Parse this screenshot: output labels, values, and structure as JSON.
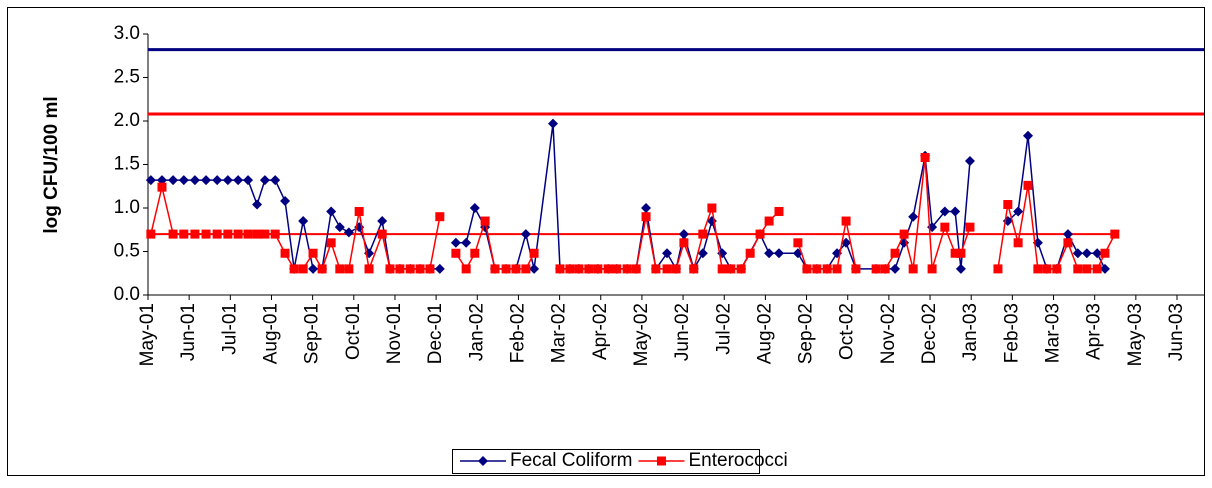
{
  "chart_data": {
    "type": "line",
    "ylabel": "log CFU/100 ml",
    "xlim": [
      0,
      25
    ],
    "ylim": [
      0,
      3
    ],
    "yticks": [
      {
        "value": 0,
        "label": "0.0"
      },
      {
        "value": 0.5,
        "label": "0.5"
      },
      {
        "value": 1,
        "label": "1.0"
      },
      {
        "value": 1.5,
        "label": "1.5"
      },
      {
        "value": 2,
        "label": "2.0"
      },
      {
        "value": 2.5,
        "label": "2.5"
      },
      {
        "value": 3,
        "label": "3.0"
      }
    ],
    "xticks": [
      {
        "value": 0,
        "label": "May-01"
      },
      {
        "value": 1,
        "label": "Jun-01"
      },
      {
        "value": 2,
        "label": "Jul-01"
      },
      {
        "value": 3,
        "label": "Aug-01"
      },
      {
        "value": 4,
        "label": "Sep-01"
      },
      {
        "value": 5,
        "label": "Oct-01"
      },
      {
        "value": 6,
        "label": "Nov-01"
      },
      {
        "value": 7,
        "label": "Dec-01"
      },
      {
        "value": 8,
        "label": "Jan-02"
      },
      {
        "value": 9,
        "label": "Feb-02"
      },
      {
        "value": 10,
        "label": "Mar-02"
      },
      {
        "value": 11,
        "label": "Apr-02"
      },
      {
        "value": 12,
        "label": "May-02"
      },
      {
        "value": 13,
        "label": "Jun-02"
      },
      {
        "value": 14,
        "label": "Jul-02"
      },
      {
        "value": 15,
        "label": "Aug-02"
      },
      {
        "value": 16,
        "label": "Sep-02"
      },
      {
        "value": 17,
        "label": "Oct-02"
      },
      {
        "value": 18,
        "label": "Nov-02"
      },
      {
        "value": 19,
        "label": "Dec-02"
      },
      {
        "value": 20,
        "label": "Jan-03"
      },
      {
        "value": 21,
        "label": "Feb-03"
      },
      {
        "value": 22,
        "label": "Mar-03"
      },
      {
        "value": 23,
        "label": "Apr-03"
      },
      {
        "value": 24,
        "label": "May-03"
      },
      {
        "value": 25,
        "label": "Jun-03"
      }
    ],
    "reference_lines": [
      {
        "value": 2.82,
        "color": "#000080"
      },
      {
        "value": 2.08,
        "color": "#ff0000"
      },
      {
        "value": 0.7,
        "color": "#ff0000",
        "x_end": 23.49
      }
    ],
    "series": [
      {
        "name": "Fecal Coliform",
        "color": "#000080",
        "marker": "diamond",
        "x": [
          0.07,
          0.34,
          0.61,
          0.87,
          1.14,
          1.41,
          1.68,
          1.94,
          2.19,
          2.43,
          2.65,
          2.84,
          3.09,
          3.33,
          3.55,
          3.77,
          4.01,
          4.23,
          4.45,
          4.66,
          4.88,
          5.13,
          5.37,
          5.69,
          5.88,
          6.12,
          6.37,
          6.61,
          6.85,
          7.09,
          7.3,
          7.48,
          7.73,
          7.94,
          8.19,
          8.43,
          8.7,
          8.94,
          9.18,
          9.38,
          9.84,
          10.01,
          10.25,
          10.47,
          10.71,
          10.93,
          11.18,
          11.39,
          11.64,
          11.86,
          12.1,
          12.34,
          12.61,
          12.83,
          13.02,
          13.26,
          13.48,
          13.7,
          13.95,
          14.16,
          14.41,
          14.87,
          15.09,
          15.33,
          15.79,
          16.01,
          16.25,
          16.5,
          16.74,
          16.96,
          17.2,
          17.69,
          17.91,
          18.15,
          18.37,
          18.59,
          18.88,
          19.05,
          19.36,
          19.61,
          19.75,
          19.97,
          20.3,
          20.89,
          21.14,
          21.38,
          21.62,
          21.84,
          22.08,
          22.35,
          22.59,
          22.81,
          23.06,
          23.25
        ],
        "values": [
          1.32,
          1.32,
          1.32,
          1.32,
          1.32,
          1.32,
          1.32,
          1.32,
          1.32,
          1.32,
          1.04,
          1.32,
          1.32,
          1.08,
          0.3,
          0.85,
          0.3,
          0.3,
          0.96,
          0.78,
          0.72,
          0.78,
          0.48,
          0.85,
          0.3,
          0.3,
          0.3,
          0.3,
          0.3,
          0.3,
          null,
          0.6,
          0.6,
          1.0,
          0.78,
          0.3,
          0.3,
          0.3,
          0.7,
          0.3,
          1.97,
          0.3,
          0.3,
          0.3,
          0.3,
          0.3,
          0.3,
          0.3,
          0.3,
          0.3,
          1.0,
          0.3,
          0.48,
          0.3,
          0.7,
          0.3,
          0.48,
          0.85,
          0.48,
          0.3,
          0.3,
          0.7,
          0.48,
          0.48,
          0.48,
          0.3,
          0.3,
          0.3,
          0.48,
          0.6,
          0.3,
          0.3,
          0.3,
          0.3,
          0.6,
          0.9,
          1.6,
          0.78,
          0.96,
          0.96,
          0.3,
          1.54,
          null,
          0.85,
          0.96,
          1.83,
          0.6,
          0.3,
          0.3,
          0.7,
          0.48,
          0.48,
          0.48,
          0.3
        ]
      },
      {
        "name": "Enterococci",
        "color": "#ff0000",
        "marker": "square",
        "x": [
          0.07,
          0.34,
          0.61,
          0.87,
          1.14,
          1.41,
          1.68,
          1.94,
          2.19,
          2.43,
          2.65,
          2.84,
          3.09,
          3.33,
          3.55,
          3.77,
          4.01,
          4.23,
          4.45,
          4.66,
          4.88,
          5.13,
          5.37,
          5.69,
          5.88,
          6.12,
          6.37,
          6.61,
          6.85,
          7.09,
          7.3,
          7.48,
          7.73,
          7.94,
          8.19,
          8.43,
          8.7,
          8.94,
          9.18,
          9.38,
          9.6,
          10.01,
          10.25,
          10.47,
          10.71,
          10.93,
          11.18,
          11.39,
          11.64,
          11.86,
          12.1,
          12.34,
          12.61,
          12.83,
          13.02,
          13.26,
          13.48,
          13.7,
          13.95,
          14.16,
          14.41,
          14.63,
          14.87,
          15.09,
          15.33,
          15.5,
          15.79,
          16.01,
          16.25,
          16.5,
          16.74,
          16.96,
          17.2,
          17.4,
          17.69,
          17.91,
          18.15,
          18.37,
          18.59,
          18.88,
          19.05,
          19.36,
          19.61,
          19.75,
          19.97,
          20.3,
          20.65,
          20.89,
          21.14,
          21.38,
          21.62,
          21.84,
          22.08,
          22.35,
          22.59,
          22.81,
          23.06,
          23.25,
          23.49
        ],
        "values": [
          0.7,
          1.24,
          0.7,
          0.7,
          0.7,
          0.7,
          0.7,
          0.7,
          0.7,
          0.7,
          0.7,
          0.7,
          0.7,
          0.48,
          0.3,
          0.3,
          0.48,
          0.3,
          0.6,
          0.3,
          0.3,
          0.96,
          0.3,
          0.7,
          0.3,
          0.3,
          0.3,
          0.3,
          0.3,
          0.9,
          null,
          0.48,
          0.3,
          0.48,
          0.85,
          0.3,
          0.3,
          0.3,
          0.3,
          0.48,
          null,
          0.3,
          0.3,
          0.3,
          0.3,
          0.3,
          0.3,
          0.3,
          0.3,
          0.3,
          0.9,
          0.3,
          0.3,
          0.3,
          0.6,
          0.3,
          0.7,
          1.0,
          0.3,
          0.3,
          0.3,
          0.48,
          0.7,
          0.85,
          0.96,
          null,
          0.6,
          0.3,
          0.3,
          0.3,
          0.3,
          0.85,
          0.3,
          null,
          0.3,
          0.3,
          0.48,
          0.7,
          0.3,
          1.58,
          0.3,
          0.78,
          0.48,
          0.48,
          0.78,
          null,
          0.3,
          1.04,
          0.6,
          1.26,
          0.3,
          0.3,
          0.3,
          0.6,
          0.3,
          0.3,
          0.3,
          0.48,
          0.7
        ]
      }
    ]
  }
}
